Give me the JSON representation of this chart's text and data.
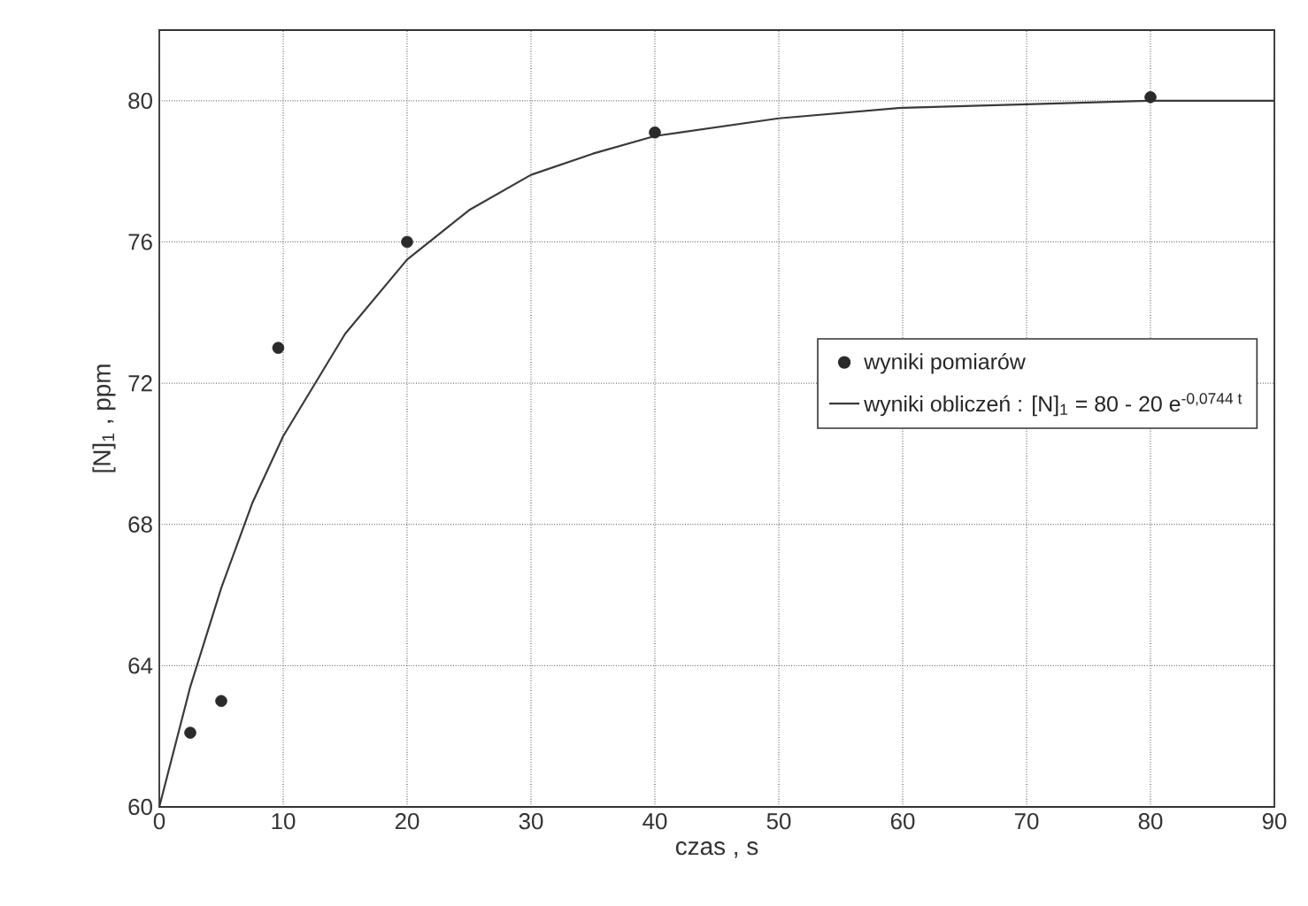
{
  "chart_data": {
    "type": "scatter",
    "xlabel": "czas , s",
    "ylabel": "[N]$_{1}$ , ppm",
    "xlim": [
      0,
      90
    ],
    "ylim": [
      60,
      82
    ],
    "xticks": [
      0,
      10,
      20,
      30,
      40,
      50,
      60,
      70,
      80,
      90
    ],
    "yticks": [
      60,
      64,
      68,
      72,
      76,
      80
    ],
    "grid": true,
    "legend": "right",
    "series": [
      {
        "name": "wyniki pomiarów",
        "marker": "circle",
        "color": "#2a2a2a",
        "x": [
          2.5,
          5,
          9.6,
          20,
          40,
          80
        ],
        "values": [
          62.1,
          63.0,
          73.0,
          76.0,
          79.1,
          80.1
        ]
      },
      {
        "name": "wyniki obliczeń : [N]$_{1}$ = 80 - 20 e$^{-0,0744 t}$",
        "type": "line",
        "color": "#3a3a3a",
        "marker": "none",
        "x": [
          0,
          2.5,
          5,
          7.5,
          10,
          15,
          20,
          25,
          30,
          35,
          40,
          50,
          60,
          70,
          80,
          90
        ],
        "values": [
          60.0,
          63.4,
          66.2,
          68.6,
          70.5,
          73.4,
          75.5,
          76.9,
          77.9,
          78.5,
          79.0,
          79.5,
          79.8,
          79.9,
          80.0,
          80.0
        ]
      }
    ]
  }
}
